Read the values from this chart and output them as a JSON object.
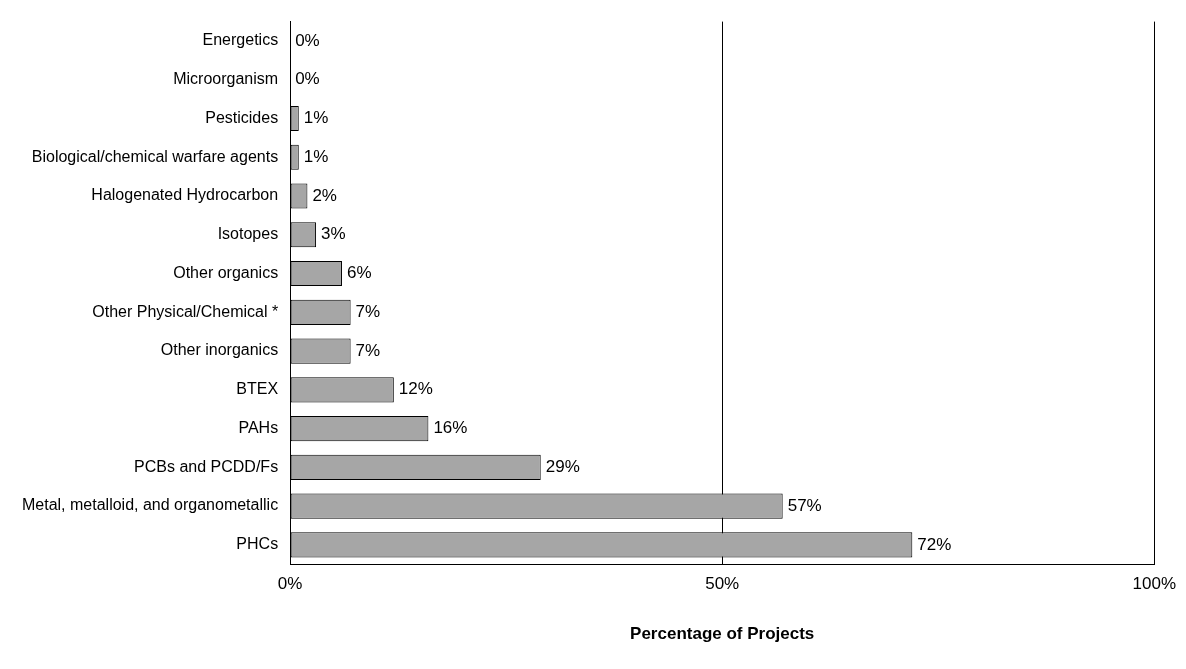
{
  "chart_data": {
    "type": "bar",
    "orientation": "horizontal",
    "xlabel": "Percentage of Projects",
    "categories": [
      "Energetics",
      "Microorganism",
      "Pesticides",
      "Biological/chemical warfare agents",
      "Halogenated Hydrocarbon",
      "Isotopes",
      "Other organics",
      "Other Physical/Chemical *",
      "Other inorganics",
      "BTEX",
      "PAHs",
      "PCBs and PCDD/Fs",
      "Metal, metalloid, and organometallic",
      "PHCs"
    ],
    "values": [
      0,
      0,
      1,
      1,
      2,
      3,
      6,
      7,
      7,
      12,
      16,
      29,
      57,
      72
    ],
    "value_labels": [
      "0%",
      "0%",
      "1%",
      "1%",
      "2%",
      "3%",
      "6%",
      "7%",
      "7%",
      "12%",
      "16%",
      "29%",
      "57%",
      "72%"
    ],
    "color": "#a6a6a6",
    "xlim": [
      0,
      100
    ],
    "xticks": [
      {
        "value": 0,
        "label": "0%"
      },
      {
        "value": 50,
        "label": "50%"
      },
      {
        "value": 100,
        "label": "100%"
      }
    ],
    "grid": "x",
    "legend": false
  }
}
